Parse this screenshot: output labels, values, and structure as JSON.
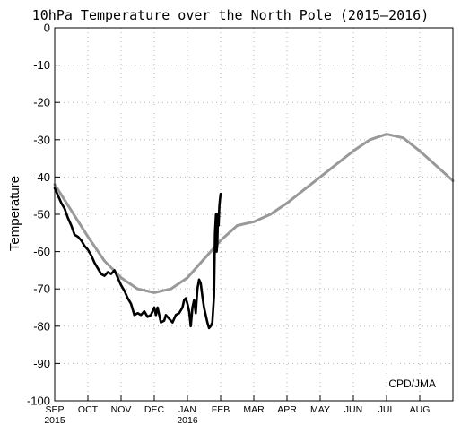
{
  "chart_data": {
    "type": "line",
    "title": "10hPa Temperature over the North Pole (2015–2016)",
    "xlabel": "",
    "ylabel": "Temperature",
    "ylim": [
      -100,
      0
    ],
    "yticks": [
      0,
      -10,
      -20,
      -30,
      -40,
      -50,
      -60,
      -70,
      -80,
      -90,
      -100
    ],
    "x_tick_labels": [
      {
        "label": "SEP",
        "sub": "2015"
      },
      {
        "label": "OCT",
        "sub": ""
      },
      {
        "label": "NOV",
        "sub": ""
      },
      {
        "label": "DEC",
        "sub": ""
      },
      {
        "label": "JAN",
        "sub": "2016"
      },
      {
        "label": "FEB",
        "sub": ""
      },
      {
        "label": "MAR",
        "sub": ""
      },
      {
        "label": "APR",
        "sub": ""
      },
      {
        "label": "MAY",
        "sub": ""
      },
      {
        "label": "JUN",
        "sub": ""
      },
      {
        "label": "JUL",
        "sub": ""
      },
      {
        "label": "AUG",
        "sub": ""
      }
    ],
    "x_unit_note": "x values are months since 1 Sep 2015 (0 = SEP 2015, 12 = SEP 2016)",
    "xlim": [
      0,
      12
    ],
    "grid": true,
    "annotation": "CPD/JMA",
    "series": [
      {
        "name": "",
        "color": "#999999",
        "points": [
          [
            0,
            -42
          ],
          [
            0.5,
            -49
          ],
          [
            1,
            -56
          ],
          [
            1.5,
            -62.5
          ],
          [
            2,
            -67
          ],
          [
            2.5,
            -70
          ],
          [
            3,
            -71
          ],
          [
            3.5,
            -70
          ],
          [
            4,
            -67
          ],
          [
            4.5,
            -62
          ],
          [
            5,
            -57
          ],
          [
            5.5,
            -53
          ],
          [
            6,
            -52
          ],
          [
            6.5,
            -50
          ],
          [
            7,
            -47
          ],
          [
            7.5,
            -43.5
          ],
          [
            8,
            -40
          ],
          [
            8.5,
            -36.5
          ],
          [
            9,
            -33
          ],
          [
            9.5,
            -30
          ],
          [
            10,
            -28.5
          ],
          [
            10.5,
            -29.5
          ],
          [
            11,
            -33
          ],
          [
            11.5,
            -37
          ],
          [
            12,
            -41
          ]
        ]
      },
      {
        "name": "",
        "color": "#000000",
        "points": [
          [
            0,
            -43
          ],
          [
            0.1,
            -45
          ],
          [
            0.2,
            -47
          ],
          [
            0.3,
            -48.5
          ],
          [
            0.4,
            -51
          ],
          [
            0.5,
            -53
          ],
          [
            0.6,
            -55.5
          ],
          [
            0.7,
            -56
          ],
          [
            0.8,
            -57
          ],
          [
            0.9,
            -58.5
          ],
          [
            1.0,
            -59.5
          ],
          [
            1.1,
            -61
          ],
          [
            1.2,
            -63
          ],
          [
            1.3,
            -64.5
          ],
          [
            1.4,
            -66
          ],
          [
            1.5,
            -66.5
          ],
          [
            1.6,
            -65.5
          ],
          [
            1.7,
            -66
          ],
          [
            1.8,
            -65
          ],
          [
            1.9,
            -67
          ],
          [
            2.0,
            -69
          ],
          [
            2.1,
            -70.5
          ],
          [
            2.2,
            -72.5
          ],
          [
            2.3,
            -74
          ],
          [
            2.4,
            -77
          ],
          [
            2.5,
            -76.5
          ],
          [
            2.6,
            -77
          ],
          [
            2.7,
            -76
          ],
          [
            2.8,
            -77.5
          ],
          [
            2.9,
            -77
          ],
          [
            3.0,
            -75
          ],
          [
            3.05,
            -77
          ],
          [
            3.1,
            -75
          ],
          [
            3.2,
            -79
          ],
          [
            3.3,
            -78.5
          ],
          [
            3.35,
            -77
          ],
          [
            3.45,
            -78
          ],
          [
            3.55,
            -79
          ],
          [
            3.65,
            -77
          ],
          [
            3.75,
            -76.5
          ],
          [
            3.85,
            -75
          ],
          [
            3.9,
            -73
          ],
          [
            3.95,
            -72.5
          ],
          [
            4.0,
            -74
          ],
          [
            4.05,
            -76
          ],
          [
            4.1,
            -80
          ],
          [
            4.15,
            -75
          ],
          [
            4.2,
            -73
          ],
          [
            4.25,
            -76.5
          ],
          [
            4.3,
            -70
          ],
          [
            4.35,
            -67.5
          ],
          [
            4.4,
            -68.5
          ],
          [
            4.45,
            -72
          ],
          [
            4.5,
            -75
          ],
          [
            4.55,
            -77
          ],
          [
            4.6,
            -79
          ],
          [
            4.65,
            -80.5
          ],
          [
            4.7,
            -80
          ],
          [
            4.75,
            -79
          ],
          [
            4.8,
            -72
          ],
          [
            4.83,
            -55
          ],
          [
            4.86,
            -50
          ],
          [
            4.88,
            -60
          ],
          [
            4.9,
            -58
          ],
          [
            4.92,
            -50
          ],
          [
            4.94,
            -53
          ],
          [
            4.96,
            -48
          ],
          [
            4.98,
            -46
          ],
          [
            5.0,
            -44.5
          ]
        ]
      }
    ]
  }
}
